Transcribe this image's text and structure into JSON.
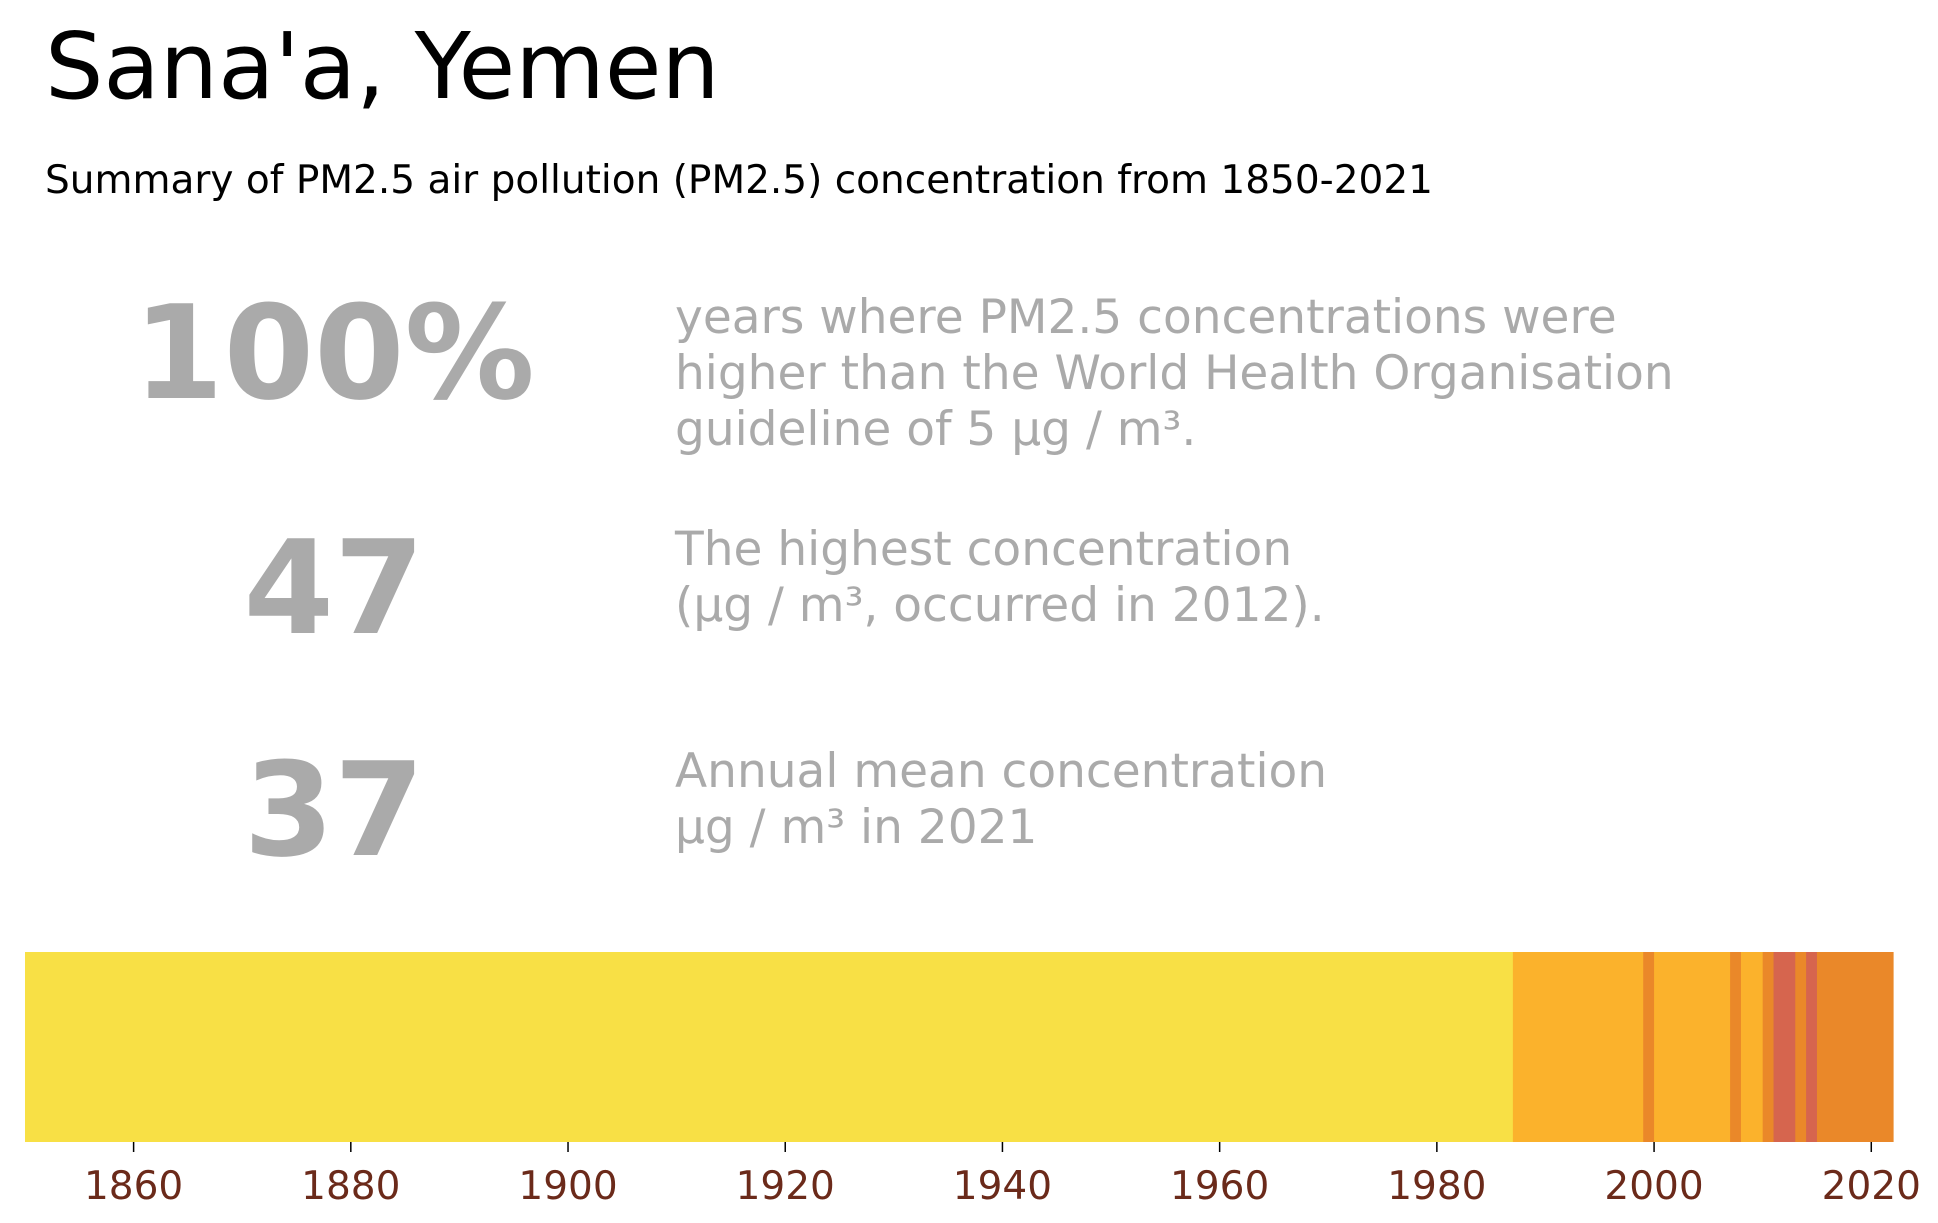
{
  "title": "Sana'a, Yemen",
  "subtitle": "Summary of PM2.5 air pollution (PM2.5) concentration from 1850-2021",
  "stats": [
    {
      "value": "100%",
      "lines": [
        "years where PM2.5 concentrations were",
        "higher than the World Health Organisation",
        "guideline of 5 µg / m³."
      ]
    },
    {
      "value": "47",
      "lines": [
        "The highest concentration",
        "(µg / m³, occurred in 2012)."
      ]
    },
    {
      "value": "37",
      "lines": [
        "Annual mean concentration",
        "µg / m³ in 2021"
      ]
    }
  ],
  "colors": {
    "stat_text": "#aaaaaa",
    "tick_text": "#6b2a1a",
    "band_low": "#f8e045",
    "band_mid": "#fbb22c",
    "band_high": "#ea8829",
    "band_peak": "#d6654e"
  },
  "chart_data": {
    "type": "heatmap",
    "xlim": [
      1850,
      2022
    ],
    "xticks": [
      1860,
      1880,
      1900,
      1920,
      1940,
      1960,
      1980,
      2000,
      2020
    ],
    "segments": [
      {
        "start": 1850,
        "end": 1987,
        "level": "low"
      },
      {
        "start": 1987,
        "end": 1999,
        "level": "mid"
      },
      {
        "start": 1999,
        "end": 2000,
        "level": "high"
      },
      {
        "start": 2000,
        "end": 2007,
        "level": "mid"
      },
      {
        "start": 2007,
        "end": 2008,
        "level": "high"
      },
      {
        "start": 2008,
        "end": 2010,
        "level": "mid"
      },
      {
        "start": 2010,
        "end": 2011,
        "level": "high"
      },
      {
        "start": 2011,
        "end": 2013,
        "level": "peak"
      },
      {
        "start": 2013,
        "end": 2014,
        "level": "high"
      },
      {
        "start": 2014,
        "end": 2015,
        "level": "peak"
      },
      {
        "start": 2015,
        "end": 2022,
        "level": "high"
      }
    ]
  }
}
